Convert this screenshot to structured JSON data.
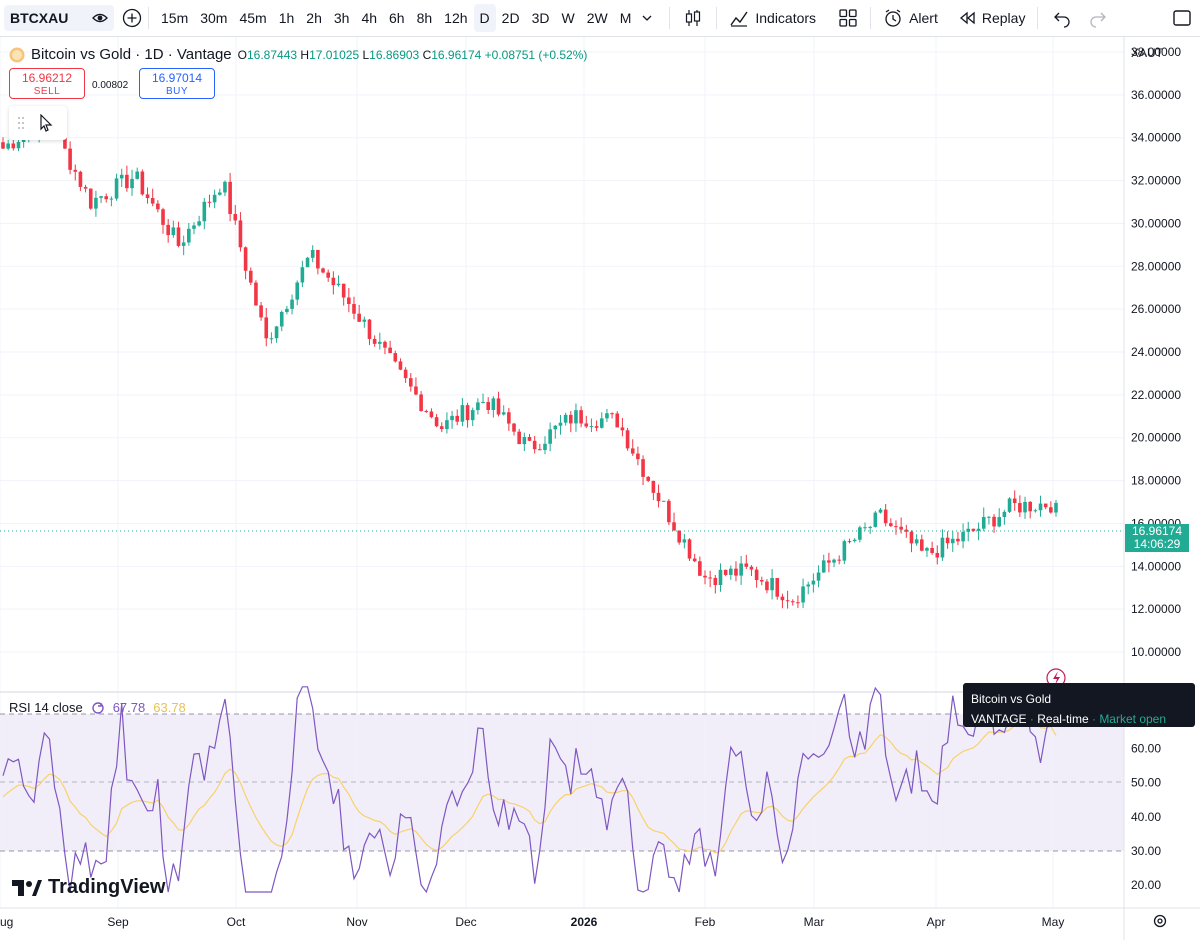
{
  "toolbar": {
    "symbol": "BTCXAU",
    "intervals": [
      "15m",
      "30m",
      "45m",
      "1h",
      "2h",
      "3h",
      "4h",
      "6h",
      "8h",
      "12h",
      "D",
      "2D",
      "3D",
      "W",
      "2W",
      "M"
    ],
    "active_interval": "D",
    "indicators_label": "Indicators",
    "alert_label": "Alert",
    "replay_label": "Replay"
  },
  "legend": {
    "title": "Bitcoin vs Gold · 1D · Vantage",
    "o_label": "O",
    "o": "16.87443",
    "h_label": "H",
    "h": "17.01025",
    "l_label": "L",
    "l": "16.86903",
    "c_label": "C",
    "c": "16.96174",
    "change": "+0.08751 (+0.52%)"
  },
  "trade": {
    "sell_price": "16.96212",
    "sell_label": "SELL",
    "spread": "0.00802",
    "buy_price": "16.97014",
    "buy_label": "BUY"
  },
  "price_axis": {
    "currency": "XAUT",
    "labels": [
      "38.00000",
      "36.00000",
      "34.00000",
      "32.00000",
      "30.00000",
      "28.00000",
      "26.00000",
      "24.00000",
      "22.00000",
      "20.00000",
      "18.00000",
      "16.00000",
      "14.00000",
      "12.00000",
      "10.00000"
    ],
    "last_price": "16.96174",
    "countdown": "14:06:29"
  },
  "rsi": {
    "label": "RSI 14 close",
    "value": "67.78",
    "ma_value": "63.78",
    "axis_labels": [
      "60.00",
      "50.00",
      "40.00",
      "30.00",
      "20.00"
    ]
  },
  "time_axis": [
    "ug",
    "Sep",
    "Oct",
    "Nov",
    "Dec",
    "2026",
    "Feb",
    "Mar",
    "Apr",
    "May"
  ],
  "tooltip": {
    "title": "Bitcoin vs Gold",
    "exchange": "VANTAGE",
    "mode": "Real-time",
    "status": "Market open"
  },
  "brand": "TradingView",
  "colors": {
    "up": "#22ab94",
    "down": "#f23645",
    "rsi": "#7e57c2",
    "rsi_ma": "#f7d26a"
  },
  "chart_data": {
    "type": "candlestick",
    "title": "Bitcoin vs Gold · 1D · Vantage",
    "ylim": [
      10,
      38
    ],
    "approx_close_path": [
      {
        "x": "Aug",
        "y": 33.5
      },
      {
        "x": "Aug end",
        "y": 35.0
      },
      {
        "x": "Sep",
        "y": 31.0
      },
      {
        "x": "Sep mid",
        "y": 32.2
      },
      {
        "x": "Sep end",
        "y": 29.0
      },
      {
        "x": "Oct",
        "y": 32.0
      },
      {
        "x": "Oct mid",
        "y": 24.5
      },
      {
        "x": "Oct end",
        "y": 28.5
      },
      {
        "x": "Nov",
        "y": 26.0
      },
      {
        "x": "Nov mid",
        "y": 23.0
      },
      {
        "x": "Nov end",
        "y": 20.5
      },
      {
        "x": "Dec",
        "y": 21.8
      },
      {
        "x": "Dec mid",
        "y": 19.5
      },
      {
        "x": "Dec end",
        "y": 21.0
      },
      {
        "x": "2026",
        "y": 20.8
      },
      {
        "x": "Jan mid",
        "y": 17.0
      },
      {
        "x": "Feb",
        "y": 13.5
      },
      {
        "x": "Feb mid",
        "y": 13.8
      },
      {
        "x": "Mar",
        "y": 12.5
      },
      {
        "x": "Mar mid",
        "y": 14.5
      },
      {
        "x": "Mar end",
        "y": 16.3
      },
      {
        "x": "Apr",
        "y": 14.5
      },
      {
        "x": "Apr mid",
        "y": 15.5
      },
      {
        "x": "Apr end",
        "y": 16.8
      },
      {
        "x": "May",
        "y": 16.96
      }
    ]
  }
}
